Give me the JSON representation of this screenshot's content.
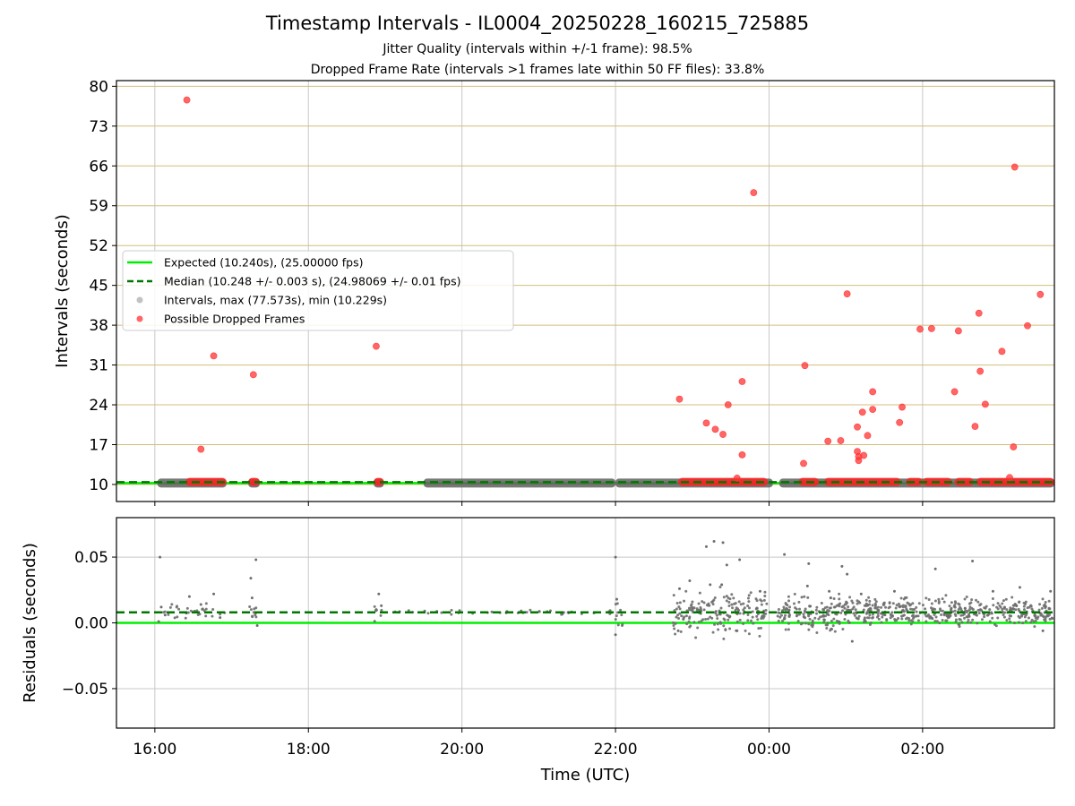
{
  "chart_data": [
    {
      "type": "scatter",
      "title": "Timestamp Intervals - IL0004_20250228_160215_725885",
      "subtitles": [
        "Jitter Quality (intervals within +/-1 frame): 98.5%",
        "Dropped Frame Rate (intervals >1 frames late within 50 FF files): 33.8%"
      ],
      "xlabel": "",
      "ylabel": "Intervals (seconds)",
      "x_unit": "time (UTC), 2025-02-28 to 2025-03-01",
      "xlim": [
        "15:30",
        "03:43"
      ],
      "ylim": [
        7,
        81
      ],
      "yticks": [
        10,
        17,
        24,
        31,
        38,
        45,
        52,
        59,
        66,
        73,
        80
      ],
      "grid": "on",
      "legend_position": "center-left",
      "legend": [
        {
          "label": "Expected (10.240s), (25.00000 fps)",
          "kind": "line",
          "color": "#00ee00"
        },
        {
          "label": "Median (10.248 +/- 0.003 s), (24.98069 +/- 0.01 fps)",
          "kind": "dashed-line",
          "color": "#007700"
        },
        {
          "label": "Intervals, max (77.573s), min (10.229s)",
          "kind": "marker",
          "color": "#999999"
        },
        {
          "label": "Possible Dropped Frames",
          "kind": "marker",
          "color": "#ff3333"
        }
      ],
      "series": [
        {
          "name": "Expected (10.240s), (25.00000 fps)",
          "type": "hline",
          "y": 10.24,
          "color": "#00ee00"
        },
        {
          "name": "Median (10.248 +/- 0.003 s), (24.98069 +/- 0.01 fps)",
          "type": "hline",
          "y": 10.248,
          "color": "#007700"
        },
        {
          "name": "Intervals, max (77.573s), min (10.229s)",
          "type": "band",
          "y": 10.25,
          "x_segments": [
            [
              "16:02",
              "16:56"
            ],
            [
              "17:13",
              "17:22"
            ],
            [
              "18:51",
              "18:59"
            ],
            [
              "19:30",
              "22:00"
            ],
            [
              "22:00",
              "00:03"
            ],
            [
              "00:08",
              "03:43"
            ]
          ],
          "color": "#606060"
        },
        {
          "name": "Possible Dropped Frames",
          "color": "#ff3333",
          "points": [
            {
              "x": "16:25",
              "y": 77.6
            },
            {
              "x": "16:36",
              "y": 16.2
            },
            {
              "x": "16:46",
              "y": 32.6
            },
            {
              "x": "17:17",
              "y": 29.3
            },
            {
              "x": "18:53",
              "y": 34.3
            },
            {
              "x": "22:50",
              "y": 25.0
            },
            {
              "x": "23:11",
              "y": 20.8
            },
            {
              "x": "23:18",
              "y": 19.7
            },
            {
              "x": "23:24",
              "y": 18.8
            },
            {
              "x": "23:28",
              "y": 24.0
            },
            {
              "x": "23:35",
              "y": 11.1
            },
            {
              "x": "23:39",
              "y": 28.1
            },
            {
              "x": "23:39",
              "y": 15.2
            },
            {
              "x": "23:48",
              "y": 61.3
            },
            {
              "x": "00:27",
              "y": 13.7
            },
            {
              "x": "00:28",
              "y": 30.9
            },
            {
              "x": "00:46",
              "y": 17.6
            },
            {
              "x": "00:56",
              "y": 17.7
            },
            {
              "x": "01:01",
              "y": 43.5
            },
            {
              "x": "01:09",
              "y": 20.1
            },
            {
              "x": "01:09",
              "y": 15.8
            },
            {
              "x": "01:10",
              "y": 14.9
            },
            {
              "x": "01:10",
              "y": 14.2
            },
            {
              "x": "01:13",
              "y": 22.7
            },
            {
              "x": "01:14",
              "y": 15.1
            },
            {
              "x": "01:17",
              "y": 18.6
            },
            {
              "x": "01:21",
              "y": 26.3
            },
            {
              "x": "01:21",
              "y": 23.2
            },
            {
              "x": "01:42",
              "y": 20.9
            },
            {
              "x": "01:44",
              "y": 23.6
            },
            {
              "x": "01:58",
              "y": 37.3
            },
            {
              "x": "02:07",
              "y": 37.4
            },
            {
              "x": "02:25",
              "y": 26.3
            },
            {
              "x": "02:28",
              "y": 37.0
            },
            {
              "x": "02:41",
              "y": 20.2
            },
            {
              "x": "02:44",
              "y": 40.1
            },
            {
              "x": "02:45",
              "y": 29.9
            },
            {
              "x": "02:49",
              "y": 24.1
            },
            {
              "x": "03:02",
              "y": 33.4
            },
            {
              "x": "03:08",
              "y": 11.2
            },
            {
              "x": "03:11",
              "y": 16.6
            },
            {
              "x": "03:12",
              "y": 65.8
            },
            {
              "x": "03:22",
              "y": 37.9
            },
            {
              "x": "03:32",
              "y": 43.4
            }
          ],
          "baseline_y": 10.45,
          "baseline_x_segments": [
            [
              "16:24",
              "16:56"
            ],
            [
              "17:13",
              "17:22"
            ],
            [
              "18:51",
              "18:59"
            ],
            [
              "22:49",
              "23:59"
            ],
            [
              "00:23",
              "00:39"
            ],
            [
              "00:43",
              "01:43"
            ],
            [
              "01:47",
              "02:00"
            ],
            [
              "02:00",
              "02:23"
            ],
            [
              "02:25",
              "02:40"
            ],
            [
              "02:42",
              "03:43"
            ]
          ]
        }
      ]
    },
    {
      "type": "scatter",
      "xlabel": "Time (UTC)",
      "ylabel": "Residuals (seconds)",
      "ylim": [
        -0.08,
        0.08
      ],
      "yticks": [
        0.05,
        0.0,
        -0.05
      ],
      "ytick_labels": [
        "0.05",
        "0.00",
        "−0.05"
      ],
      "xlim": [
        "15:30",
        "03:43"
      ],
      "xticks": [
        "16:00",
        "18:00",
        "20:00",
        "22:00",
        "00:00",
        "02:00"
      ],
      "grid": "on",
      "series": [
        {
          "name": "Expected",
          "type": "hline",
          "y": 0.0,
          "color": "#00ee00"
        },
        {
          "name": "Median",
          "type": "hline",
          "y": 0.008,
          "color": "#007700"
        },
        {
          "name": "Residuals",
          "color": "#6e6e6e",
          "points": [
            {
              "x": "16:04",
              "y": 0.05
            },
            {
              "x": "16:03",
              "y": 0.001
            },
            {
              "x": "16:05",
              "y": 0.012
            },
            {
              "x": "16:08",
              "y": 0.006
            },
            {
              "x": "16:27",
              "y": 0.02
            },
            {
              "x": "16:36",
              "y": 0.014
            },
            {
              "x": "16:46",
              "y": 0.022
            },
            {
              "x": "16:51",
              "y": 0.004
            },
            {
              "x": "17:15",
              "y": 0.034
            },
            {
              "x": "17:19",
              "y": 0.048
            },
            {
              "x": "17:16",
              "y": 0.019
            },
            {
              "x": "17:20",
              "y": -0.002
            },
            {
              "x": "18:55",
              "y": 0.022
            },
            {
              "x": "18:57",
              "y": 0.013
            },
            {
              "x": "22:00",
              "y": 0.05
            },
            {
              "x": "22:01",
              "y": 0.018
            },
            {
              "x": "22:00",
              "y": -0.009
            },
            {
              "x": "22:49",
              "y": -0.006
            },
            {
              "x": "22:50",
              "y": 0.026
            },
            {
              "x": "22:58",
              "y": 0.032
            },
            {
              "x": "23:11",
              "y": 0.058
            },
            {
              "x": "23:14",
              "y": 0.029
            },
            {
              "x": "23:17",
              "y": 0.062
            },
            {
              "x": "23:24",
              "y": 0.061
            },
            {
              "x": "23:23",
              "y": 0.029
            },
            {
              "x": "23:27",
              "y": 0.044
            },
            {
              "x": "23:37",
              "y": 0.048
            },
            {
              "x": "23:35",
              "y": -0.006
            },
            {
              "x": "23:53",
              "y": 0.024
            },
            {
              "x": "00:12",
              "y": 0.052
            },
            {
              "x": "00:31",
              "y": 0.045
            },
            {
              "x": "00:30",
              "y": 0.028
            },
            {
              "x": "00:47",
              "y": 0.024
            },
            {
              "x": "00:57",
              "y": 0.043
            },
            {
              "x": "01:01",
              "y": 0.037
            },
            {
              "x": "01:05",
              "y": -0.014
            },
            {
              "x": "01:12",
              "y": 0.022
            },
            {
              "x": "01:38",
              "y": 0.024
            },
            {
              "x": "02:10",
              "y": 0.041
            },
            {
              "x": "02:39",
              "y": 0.047
            },
            {
              "x": "02:55",
              "y": 0.024
            },
            {
              "x": "03:16",
              "y": 0.027
            },
            {
              "x": "03:40",
              "y": 0.024
            },
            {
              "x": "03:34",
              "y": -0.006
            }
          ]
        }
      ]
    }
  ]
}
